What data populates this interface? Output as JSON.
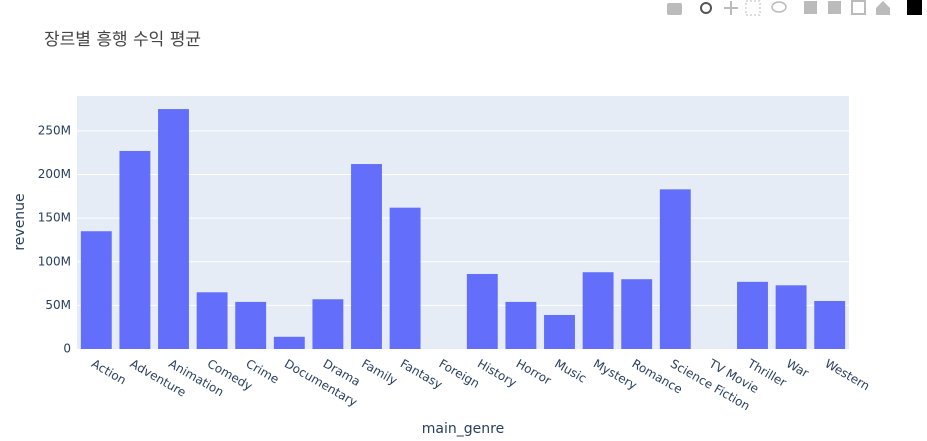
{
  "chart_data": {
    "type": "bar",
    "title": "장르별 흥행 수익 평균",
    "x_label": "main_genre",
    "y_label": "revenue",
    "categories": [
      "Action",
      "Adventure",
      "Animation",
      "Comedy",
      "Crime",
      "Documentary",
      "Drama",
      "Family",
      "Fantasy",
      "Foreign",
      "History",
      "Horror",
      "Music",
      "Mystery",
      "Romance",
      "Science Fiction",
      "TV Movie",
      "Thriller",
      "War",
      "Western"
    ],
    "values": [
      135000000,
      227000000,
      275000000,
      65000000,
      54000000,
      14000000,
      57000000,
      212000000,
      162000000,
      0,
      86000000,
      54000000,
      39000000,
      88000000,
      80000000,
      183000000,
      0,
      77000000,
      73000000,
      55000000
    ],
    "color": "#636efa",
    "ylim": [
      0,
      290000000
    ],
    "yticks": [
      0,
      {
        "value": 50000000,
        "label": "50M"
      },
      {
        "value": 100000000,
        "label": "100M"
      },
      {
        "value": 150000000,
        "label": "150M"
      },
      {
        "value": 200000000,
        "label": "200M"
      },
      {
        "value": 250000000,
        "label": "250M"
      }
    ],
    "grid": true
  }
}
